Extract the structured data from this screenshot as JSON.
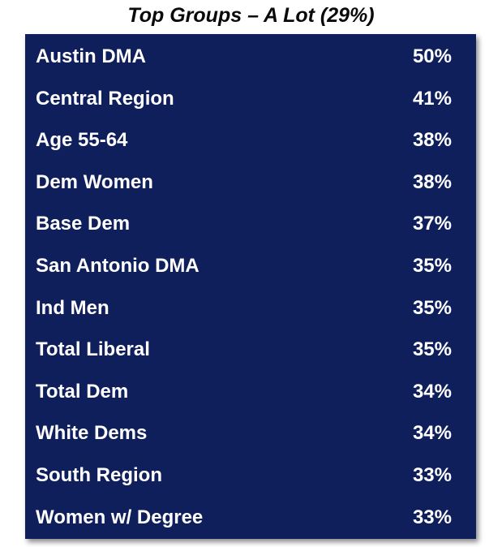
{
  "chart_data": {
    "type": "table",
    "title": "Top Groups – A Lot (29%)",
    "colors": {
      "panel_background": "#0f1f5c",
      "text": "#ffffff",
      "title_text": "#0a0a0a"
    },
    "rows": [
      {
        "label": "Austin DMA",
        "value": "50%"
      },
      {
        "label": "Central Region",
        "value": "41%"
      },
      {
        "label": "Age 55-64",
        "value": "38%"
      },
      {
        "label": "Dem Women",
        "value": "38%"
      },
      {
        "label": "Base Dem",
        "value": "37%"
      },
      {
        "label": "San Antonio DMA",
        "value": "35%"
      },
      {
        "label": "Ind Men",
        "value": "35%"
      },
      {
        "label": "Total Liberal",
        "value": "35%"
      },
      {
        "label": "Total Dem",
        "value": "34%"
      },
      {
        "label": "White Dems",
        "value": "34%"
      },
      {
        "label": "South Region",
        "value": "33%"
      },
      {
        "label": "Women w/ Degree",
        "value": "33%"
      }
    ]
  }
}
